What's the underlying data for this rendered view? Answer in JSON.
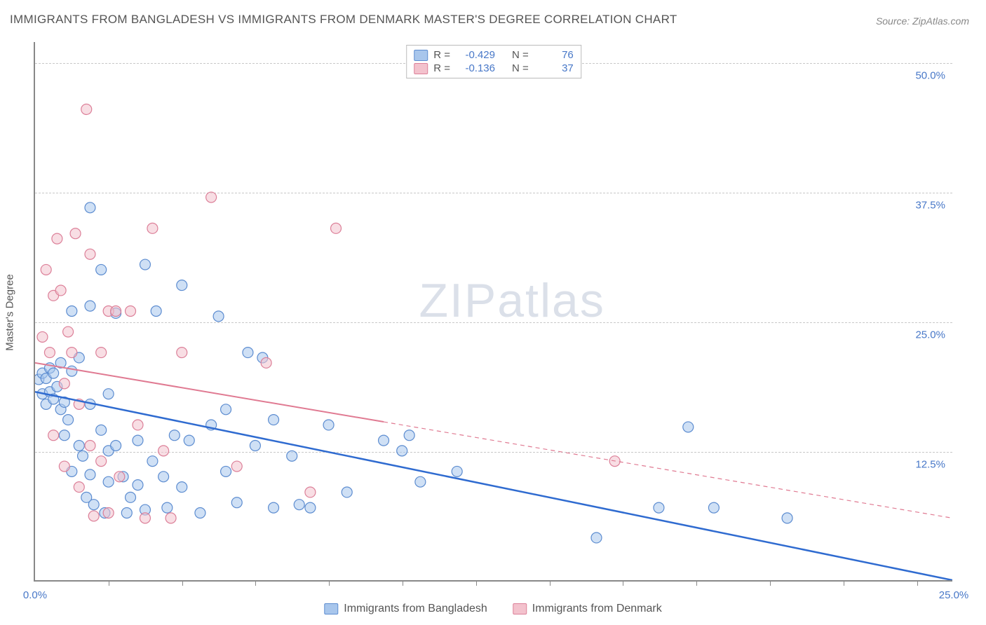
{
  "title": "IMMIGRANTS FROM BANGLADESH VS IMMIGRANTS FROM DENMARK MASTER'S DEGREE CORRELATION CHART",
  "source_label": "Source:",
  "source_value": "ZipAtlas.com",
  "watermark": "ZIPatlas",
  "ylabel": "Master's Degree",
  "chart": {
    "type": "scatter",
    "background_color": "#ffffff",
    "grid_color": "#c8c8c8",
    "axis_color": "#888888",
    "tick_label_color": "#4878c8",
    "tick_fontsize": 15,
    "label_color": "#555555",
    "xlim": [
      0,
      25
    ],
    "ylim": [
      0,
      52
    ],
    "yticks": [
      12.5,
      25.0,
      37.5,
      50.0
    ],
    "ytick_labels": [
      "12.5%",
      "25.0%",
      "37.5%",
      "50.0%"
    ],
    "xticks_minor": [
      2,
      4,
      6,
      8,
      10,
      12,
      14,
      16,
      18,
      20,
      22,
      24
    ],
    "x_start_label": "0.0%",
    "x_end_label": "25.0%",
    "marker_radius": 7.5,
    "marker_opacity": 0.55,
    "series": [
      {
        "id": "bangladesh",
        "label": "Immigrants from Bangladesh",
        "color_fill": "#a8c6ec",
        "color_stroke": "#5c8cd0",
        "r": -0.429,
        "n": 76,
        "trend": {
          "x1": 0,
          "y1": 18.2,
          "x2": 25,
          "y2": 0.0,
          "color": "#2f6bd0",
          "width": 2.5,
          "solid_to_x": 25
        },
        "points": [
          [
            0.1,
            19.4
          ],
          [
            0.2,
            20.0
          ],
          [
            0.2,
            18.0
          ],
          [
            0.3,
            19.5
          ],
          [
            0.3,
            17.0
          ],
          [
            0.4,
            18.2
          ],
          [
            0.4,
            20.5
          ],
          [
            0.5,
            20.0
          ],
          [
            0.5,
            17.5
          ],
          [
            0.6,
            18.7
          ],
          [
            0.7,
            21.0
          ],
          [
            0.7,
            16.5
          ],
          [
            0.8,
            17.2
          ],
          [
            0.8,
            14.0
          ],
          [
            0.9,
            15.5
          ],
          [
            1.0,
            26.0
          ],
          [
            1.0,
            20.2
          ],
          [
            1.0,
            10.5
          ],
          [
            1.2,
            21.5
          ],
          [
            1.2,
            13.0
          ],
          [
            1.3,
            12.0
          ],
          [
            1.4,
            8.0
          ],
          [
            1.5,
            36.0
          ],
          [
            1.5,
            26.5
          ],
          [
            1.5,
            17.0
          ],
          [
            1.5,
            10.2
          ],
          [
            1.6,
            7.3
          ],
          [
            1.8,
            30.0
          ],
          [
            1.8,
            14.5
          ],
          [
            1.9,
            6.5
          ],
          [
            2.0,
            18.0
          ],
          [
            2.0,
            12.5
          ],
          [
            2.0,
            9.5
          ],
          [
            2.2,
            25.8
          ],
          [
            2.2,
            13.0
          ],
          [
            2.4,
            10.0
          ],
          [
            2.5,
            6.5
          ],
          [
            2.6,
            8.0
          ],
          [
            2.8,
            13.5
          ],
          [
            2.8,
            9.2
          ],
          [
            3.0,
            30.5
          ],
          [
            3.0,
            6.8
          ],
          [
            3.2,
            11.5
          ],
          [
            3.3,
            26.0
          ],
          [
            3.5,
            10.0
          ],
          [
            3.6,
            7.0
          ],
          [
            3.8,
            14.0
          ],
          [
            4.0,
            28.5
          ],
          [
            4.0,
            9.0
          ],
          [
            4.2,
            13.5
          ],
          [
            4.5,
            6.5
          ],
          [
            4.8,
            15.0
          ],
          [
            5.0,
            25.5
          ],
          [
            5.2,
            16.5
          ],
          [
            5.2,
            10.5
          ],
          [
            5.5,
            7.5
          ],
          [
            5.8,
            22.0
          ],
          [
            6.0,
            13.0
          ],
          [
            6.2,
            21.5
          ],
          [
            6.5,
            15.5
          ],
          [
            6.5,
            7.0
          ],
          [
            7.0,
            12.0
          ],
          [
            7.2,
            7.3
          ],
          [
            7.5,
            7.0
          ],
          [
            8.0,
            15.0
          ],
          [
            8.5,
            8.5
          ],
          [
            9.5,
            13.5
          ],
          [
            10.0,
            12.5
          ],
          [
            10.2,
            14.0
          ],
          [
            10.5,
            9.5
          ],
          [
            11.5,
            10.5
          ],
          [
            15.3,
            4.1
          ],
          [
            17.0,
            7.0
          ],
          [
            17.8,
            14.8
          ],
          [
            20.5,
            6.0
          ],
          [
            18.5,
            7.0
          ]
        ]
      },
      {
        "id": "denmark",
        "label": "Immigrants from Denmark",
        "color_fill": "#f3c2cd",
        "color_stroke": "#dc7f98",
        "r": -0.136,
        "n": 37,
        "trend": {
          "x1": 0,
          "y1": 21.0,
          "x2": 25,
          "y2": 6.0,
          "color": "#e07a92",
          "width": 2,
          "solid_to_x": 9.5
        },
        "points": [
          [
            0.2,
            23.5
          ],
          [
            0.3,
            30.0
          ],
          [
            0.4,
            22.0
          ],
          [
            0.5,
            27.5
          ],
          [
            0.5,
            14.0
          ],
          [
            0.6,
            33.0
          ],
          [
            0.7,
            28.0
          ],
          [
            0.8,
            19.0
          ],
          [
            0.8,
            11.0
          ],
          [
            0.9,
            24.0
          ],
          [
            1.0,
            22.0
          ],
          [
            1.1,
            33.5
          ],
          [
            1.2,
            17.0
          ],
          [
            1.2,
            9.0
          ],
          [
            1.4,
            45.5
          ],
          [
            1.5,
            31.5
          ],
          [
            1.5,
            13.0
          ],
          [
            1.6,
            6.2
          ],
          [
            1.8,
            22.0
          ],
          [
            1.8,
            11.5
          ],
          [
            2.0,
            26.0
          ],
          [
            2.0,
            6.5
          ],
          [
            2.2,
            26.0
          ],
          [
            2.3,
            10.0
          ],
          [
            2.6,
            26.0
          ],
          [
            2.8,
            15.0
          ],
          [
            3.0,
            6.0
          ],
          [
            3.2,
            34.0
          ],
          [
            3.5,
            12.5
          ],
          [
            3.7,
            6.0
          ],
          [
            4.0,
            22.0
          ],
          [
            4.8,
            37.0
          ],
          [
            5.5,
            11.0
          ],
          [
            6.3,
            21.0
          ],
          [
            7.5,
            8.5
          ],
          [
            8.2,
            34.0
          ],
          [
            15.8,
            11.5
          ]
        ]
      }
    ]
  },
  "legend_top": {
    "border_color": "#bbbbbb",
    "r_label": "R =",
    "n_label": "N ="
  },
  "legend_bottom_swatch_border": "#bbbbbb"
}
